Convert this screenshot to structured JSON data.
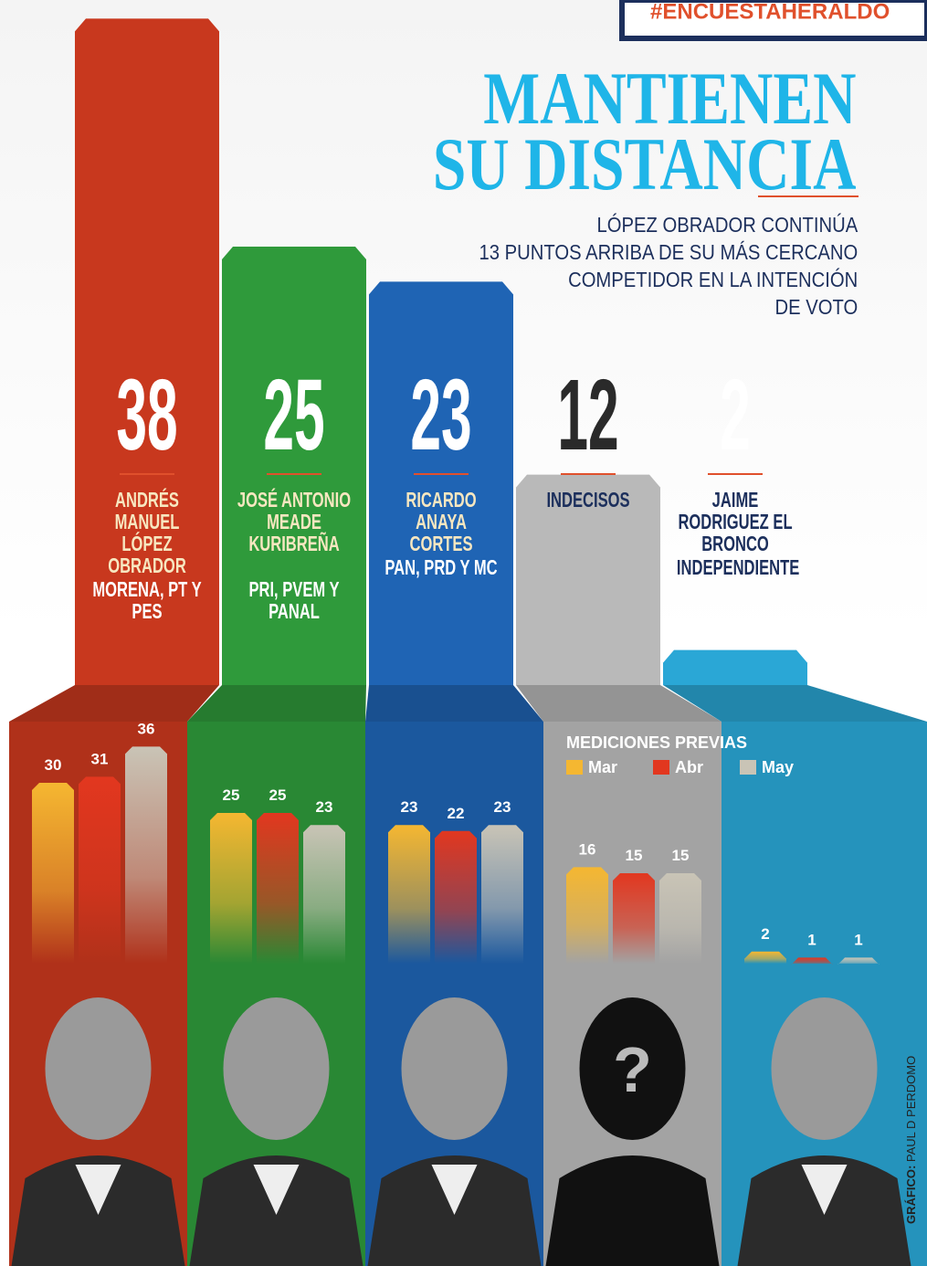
{
  "header": {
    "hashtag": "#ENCUESTAHERALDO",
    "title": [
      "MANTIENEN",
      "SU DISTANCIA"
    ],
    "subtitle": [
      "LÓPEZ OBRADOR CONTINÚA",
      "13 PUNTOS ARRIBA DE SU MÁS CERCANO",
      "COMPETIDOR EN LA INTENCIÓN",
      "DE VOTO"
    ]
  },
  "chart_data": [
    {
      "type": "bar",
      "categories": [
        "ANDRÉS MANUEL LÓPEZ OBRADOR",
        "JOSÉ ANTONIO MEADE KURIBREÑA",
        "RICARDO ANAYA CORTES",
        "INDECISOS",
        "JAIME RODRIGUEZ EL BRONCO"
      ],
      "parties": [
        "MORENA, PT Y PES",
        "PRI, PVEM Y PANAL",
        "PAN, PRD Y MC",
        null,
        "INDEPENDIENTE"
      ],
      "values": [
        38,
        25,
        23,
        12,
        2
      ],
      "colors": [
        "#c8381e",
        "#2f9a3b",
        "#1f64b4",
        "#b9b9b9",
        "#2aa7d6"
      ]
    },
    {
      "type": "grouped-bar",
      "title": "MEDICIONES PREVIAS",
      "categories": [
        null,
        null,
        null,
        null,
        null
      ],
      "series": [
        {
          "name": "Mar",
          "color": "#f5b731",
          "values": [
            30,
            25,
            23,
            16,
            2
          ]
        },
        {
          "name": "Abr",
          "color": "#e2371f",
          "values": [
            31,
            25,
            22,
            15,
            1
          ]
        },
        {
          "name": "May",
          "color": "#c9c4b6",
          "values": [
            36,
            23,
            23,
            15,
            1
          ]
        }
      ]
    }
  ],
  "credit": {
    "label": "GRÁFICO:",
    "name": "PAUL D PERDOMO"
  }
}
